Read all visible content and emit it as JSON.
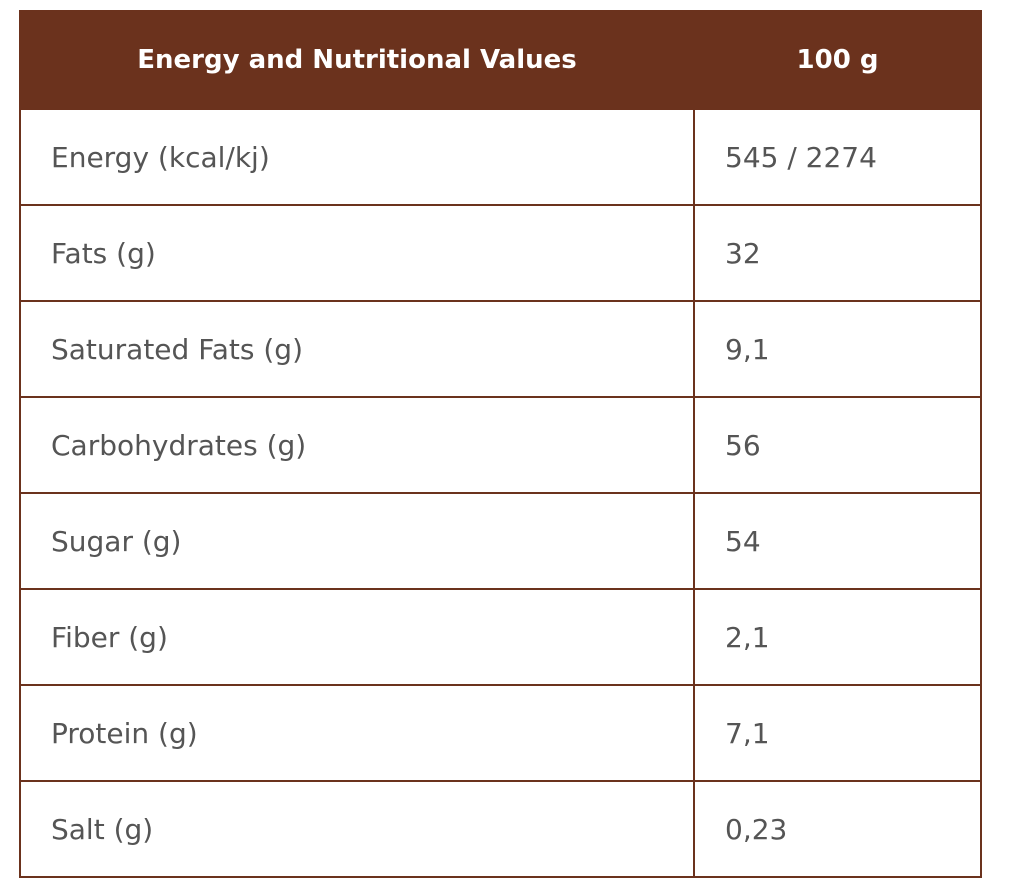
{
  "table": {
    "header": {
      "nutrient": "Energy and Nutritional Values",
      "amount": "100 g"
    },
    "rows": [
      {
        "label": "Energy (kcal/kj)",
        "value": "545 / 2274"
      },
      {
        "label": "Fats (g)",
        "value": "32"
      },
      {
        "label": "Saturated Fats (g)",
        "value": "9,1"
      },
      {
        "label": "Carbohydrates (g)",
        "value": "56"
      },
      {
        "label": "Sugar (g)",
        "value": "54"
      },
      {
        "label": "Fiber (g)",
        "value": "2,1"
      },
      {
        "label": "Protein (g)",
        "value": "7,1"
      },
      {
        "label": "Salt (g)",
        "value": "0,23"
      }
    ]
  },
  "colors": {
    "header_background": "#6b321d",
    "header_text": "#ffffff",
    "border": "#6b321d",
    "cell_text": "#555555"
  }
}
